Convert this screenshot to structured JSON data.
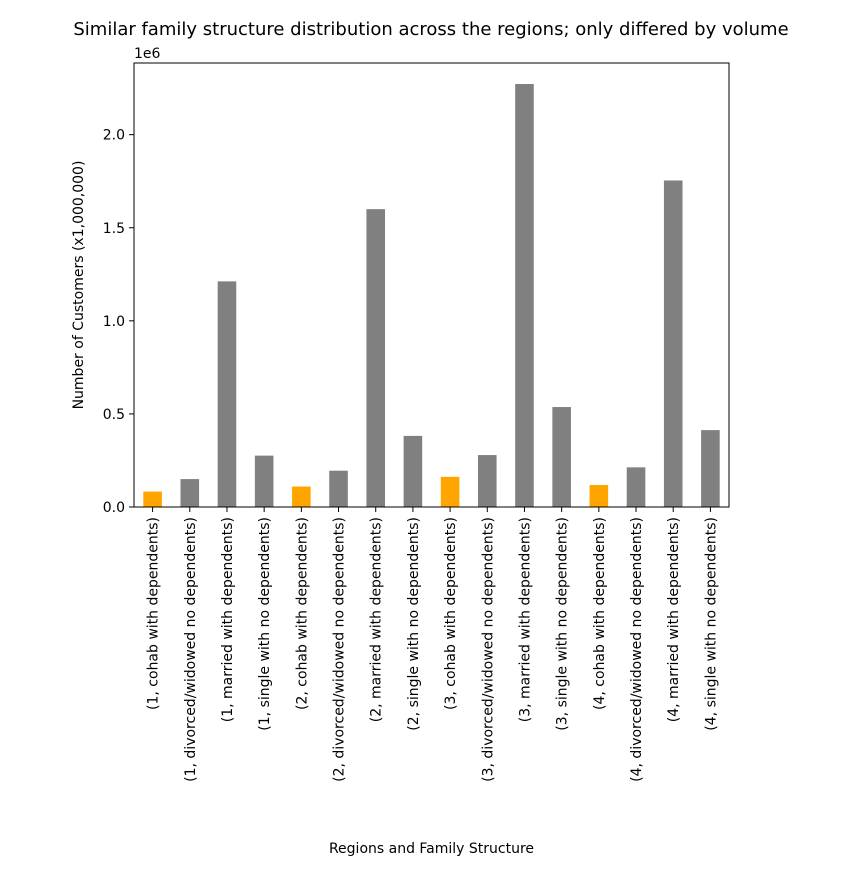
{
  "chart_data": {
    "type": "bar",
    "title": "Similar family structure distribution across the regions; only differed by volume",
    "xlabel": "Regions and Family Structure",
    "ylabel": "Number of Customers (x1,000,000)",
    "y_offset_text": "1e6",
    "ylim": [
      0,
      2.385
    ],
    "yticks": [
      {
        "value": 0.0,
        "label": "0.0"
      },
      {
        "value": 0.5,
        "label": "0.5"
      },
      {
        "value": 1.0,
        "label": "1.0"
      },
      {
        "value": 1.5,
        "label": "1.5"
      },
      {
        "value": 2.0,
        "label": "2.0"
      }
    ],
    "grid": false,
    "legend": "none",
    "colors": {
      "highlight": "#ffa500",
      "default": "#808080"
    },
    "categories": [
      "(1, cohab with dependents)",
      "(1, divorced/widowed no dependents)",
      "(1, married with dependents)",
      "(1, single with no dependents)",
      "(2, cohab with dependents)",
      "(2, divorced/widowed no dependents)",
      "(2, married with dependents)",
      "(2, single with no dependents)",
      "(3, cohab with dependents)",
      "(3, divorced/widowed no dependents)",
      "(3, married with dependents)",
      "(3, single with no dependents)",
      "(4, cohab with dependents)",
      "(4, divorced/widowed no dependents)",
      "(4, married with dependents)",
      "(4, single with no dependents)"
    ],
    "values": [
      0.083,
      0.15,
      1.212,
      0.276,
      0.11,
      0.195,
      1.6,
      0.382,
      0.162,
      0.279,
      2.272,
      0.537,
      0.118,
      0.213,
      1.754,
      0.413
    ],
    "bar_colors": [
      "#ffa500",
      "#808080",
      "#808080",
      "#808080",
      "#ffa500",
      "#808080",
      "#808080",
      "#808080",
      "#ffa500",
      "#808080",
      "#808080",
      "#808080",
      "#ffa500",
      "#808080",
      "#808080",
      "#808080"
    ]
  }
}
